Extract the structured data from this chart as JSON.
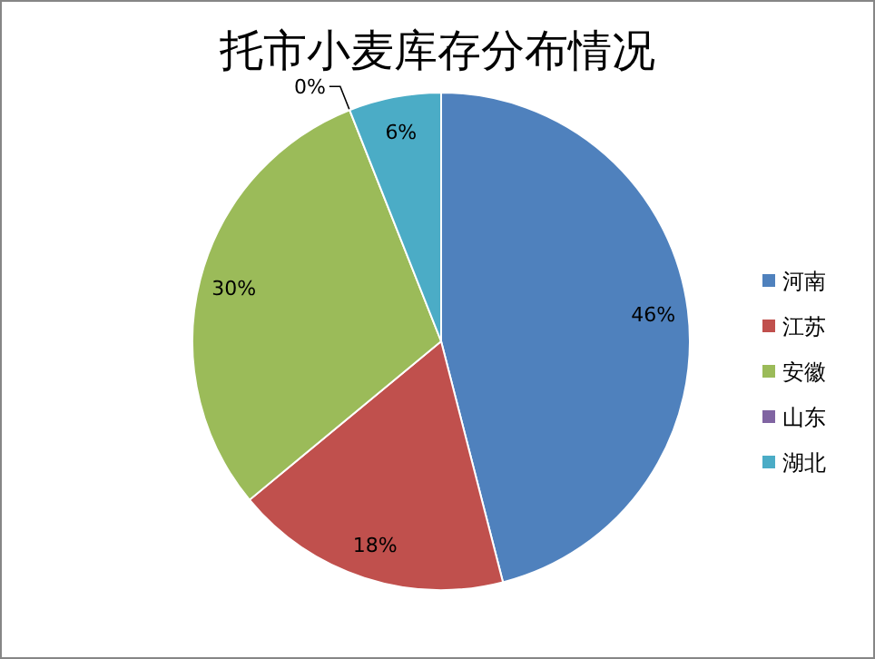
{
  "chart_data": {
    "type": "pie",
    "title": "托市小麦库存分布情况",
    "categories": [
      "河南",
      "江苏",
      "安徽",
      "山东",
      "湖北"
    ],
    "values": [
      46,
      18,
      30,
      0,
      6
    ],
    "value_labels": [
      "46%",
      "18%",
      "30%",
      "0%",
      "6%"
    ],
    "colors": [
      "#4f81bd",
      "#c0504d",
      "#9bbb59",
      "#8064a2",
      "#4bacc6"
    ],
    "legend": "right"
  }
}
